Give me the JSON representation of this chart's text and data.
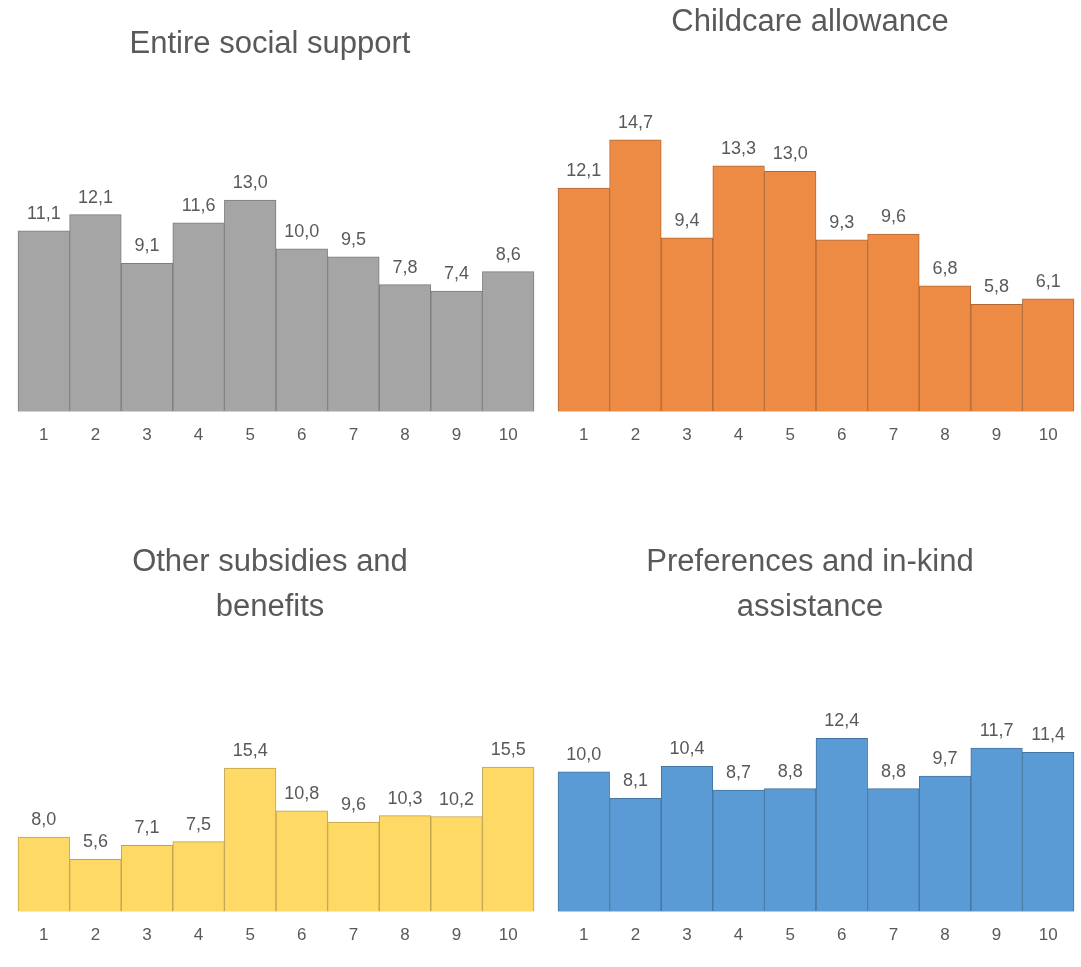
{
  "chart_data": [
    {
      "type": "bar",
      "title": "Entire social support",
      "categories": [
        "1",
        "2",
        "3",
        "4",
        "5",
        "6",
        "7",
        "8",
        "9",
        "10"
      ],
      "values": [
        11.1,
        12.1,
        9.1,
        11.6,
        13.0,
        10.0,
        9.5,
        7.8,
        7.4,
        8.6
      ],
      "value_labels": [
        "11,1",
        "12,1",
        "9,1",
        "11,6",
        "13,0",
        "10,0",
        "9,5",
        "7,8",
        "7,4",
        "8,6"
      ],
      "color": "#a5a5a5",
      "tick_labels": "x"
    },
    {
      "type": "bar",
      "title": "Childcare allowance",
      "categories": [
        "1",
        "2",
        "3",
        "4",
        "5",
        "6",
        "7",
        "8",
        "9",
        "10"
      ],
      "values": [
        12.1,
        14.7,
        9.4,
        13.3,
        13.0,
        9.3,
        9.6,
        6.8,
        5.8,
        6.1
      ],
      "value_labels": [
        "12,1",
        "14,7",
        "9,4",
        "13,3",
        "13,0",
        "9,3",
        "9,6",
        "6,8",
        "5,8",
        "6,1"
      ],
      "color": "#ed8b45",
      "tick_labels": "x"
    },
    {
      "type": "bar",
      "title": "Other subsidies and benefits",
      "categories": [
        "1",
        "2",
        "3",
        "4",
        "5",
        "6",
        "7",
        "8",
        "9",
        "10"
      ],
      "values": [
        8.0,
        5.6,
        7.1,
        7.5,
        15.4,
        10.8,
        9.6,
        10.3,
        10.2,
        15.5
      ],
      "value_labels": [
        "8,0",
        "5,6",
        "7,1",
        "7,5",
        "15,4",
        "10,8",
        "9,6",
        "10,3",
        "10,2",
        "15,5"
      ],
      "color": "#ffd966",
      "tick_labels": "x"
    },
    {
      "type": "bar",
      "title": "Preferences and in-kind assistance",
      "categories": [
        "1",
        "2",
        "3",
        "4",
        "5",
        "6",
        "7",
        "8",
        "9",
        "10"
      ],
      "values": [
        10.0,
        8.1,
        10.4,
        8.7,
        8.8,
        12.4,
        8.8,
        9.7,
        11.7,
        11.4
      ],
      "value_labels": [
        "10,0",
        "8,1",
        "10,4",
        "8,7",
        "8,8",
        "12,4",
        "8,8",
        "9,7",
        "11,7",
        "11,4"
      ],
      "color": "#5b9bd5",
      "tick_labels": "x"
    }
  ]
}
